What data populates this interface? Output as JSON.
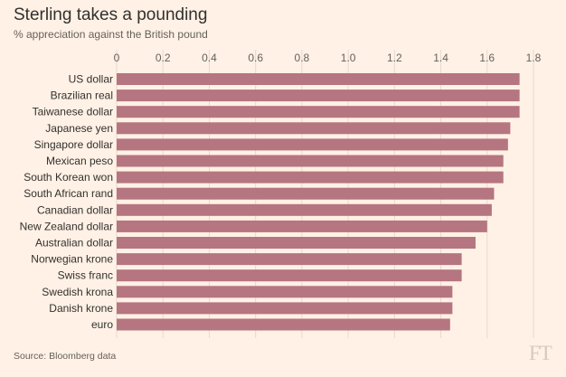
{
  "chart_data": {
    "type": "bar",
    "orientation": "horizontal",
    "title": "Sterling takes a pounding",
    "subtitle": "% appreciation against the British pound",
    "categories": [
      "US dollar",
      "Brazilian real",
      "Taiwanese dollar",
      "Japanese yen",
      "Singapore dollar",
      "Mexican peso",
      "South Korean won",
      "South African rand",
      "Canadian dollar",
      "New Zealand dollar",
      "Australian dollar",
      "Norwegian krone",
      "Swiss franc",
      "Swedish krona",
      "Danish krone",
      "euro"
    ],
    "values": [
      1.74,
      1.74,
      1.74,
      1.7,
      1.69,
      1.67,
      1.67,
      1.63,
      1.62,
      1.6,
      1.55,
      1.49,
      1.49,
      1.45,
      1.45,
      1.44
    ],
    "xlim": [
      0,
      1.8
    ],
    "xticks": [
      "0",
      "0.2",
      "0.4",
      "0.6",
      "0.8",
      "1.0",
      "1.2",
      "1.4",
      "1.6",
      "1.8"
    ],
    "xaxis_position": "top",
    "grid": true,
    "bar_color": "#b57581",
    "grid_color": "#e6d9ce",
    "source": "Source: Bloomberg data"
  },
  "logo_text": "FT"
}
